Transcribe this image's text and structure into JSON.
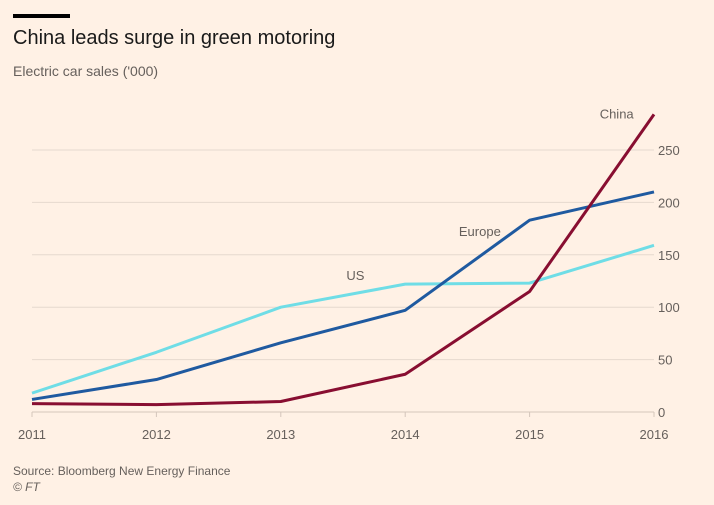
{
  "header": {
    "title": "China leads surge in green motoring",
    "subtitle": "Electric car sales ('000)"
  },
  "footer": {
    "source": "Source: Bloomberg New Energy Finance",
    "copyright": "© FT"
  },
  "chart_data": {
    "type": "line",
    "title": "China leads surge in green motoring",
    "subtitle": "Electric car sales ('000)",
    "x": [
      2011,
      2012,
      2013,
      2014,
      2015,
      2016
    ],
    "x_tick_labels": [
      "2011",
      "2012",
      "2013",
      "2014",
      "2015",
      "2016"
    ],
    "y_tick_labels": [
      "0",
      "50",
      "100",
      "150",
      "200",
      "250"
    ],
    "y_ticks": [
      0,
      50,
      100,
      150,
      200,
      250
    ],
    "ylim": [
      0,
      280
    ],
    "grid": true,
    "y_axis_side": "right",
    "series": [
      {
        "name": "US",
        "color": "#6fdde6",
        "values": [
          18,
          57,
          100,
          122,
          123,
          159
        ]
      },
      {
        "name": "Europe",
        "color": "#1f5aa0",
        "values": [
          12,
          31,
          66,
          97,
          183,
          210
        ]
      },
      {
        "name": "China",
        "color": "#880e31",
        "values": [
          8,
          7,
          10,
          36,
          115,
          284
        ]
      }
    ]
  }
}
